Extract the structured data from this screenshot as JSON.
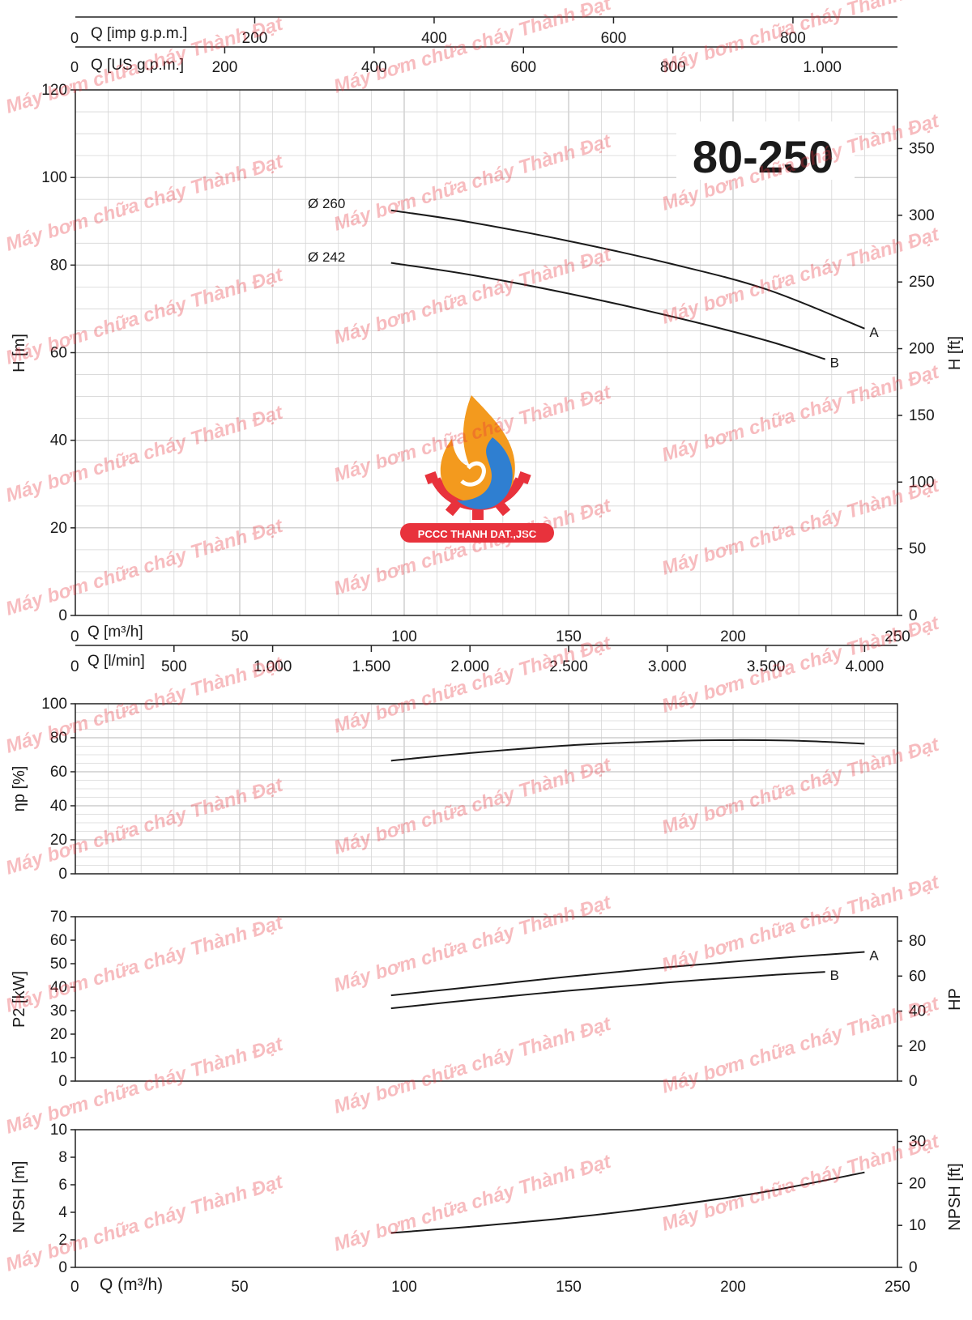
{
  "model": "80-250",
  "logo_text": "PCCC THANH DAT.,JSC",
  "watermark_text": "Máy bơm chữa cháy Thành Đạt",
  "colors": {
    "curve": "#1a1a1a",
    "grid": "#d6d6d6",
    "axis": "#222222",
    "watermark": "#e8323c",
    "logo_red": "#e8323c",
    "logo_orange": "#f39a1e",
    "logo_blue": "#2f7fd1"
  },
  "top_axes": {
    "imp_gpm": {
      "label": "Q [imp g.p.m.]",
      "ticks": [
        "0",
        "200",
        "400",
        "600",
        "800"
      ]
    },
    "us_gpm": {
      "label": "Q [US g.p.m.]",
      "ticks": [
        "0",
        "200",
        "400",
        "600",
        "800",
        "1.000"
      ]
    }
  },
  "bottom_axes": {
    "m3h": {
      "label": "Q [m³/h]",
      "ticks": [
        "0",
        "50",
        "100",
        "150",
        "200",
        "250"
      ]
    },
    "lmin": {
      "label": "Q [l/min]",
      "ticks": [
        "0",
        "500",
        "1.000",
        "1.500",
        "2.000",
        "2.500",
        "3.000",
        "3.500",
        "4.000"
      ]
    },
    "final": {
      "label": "Q (m³/h)",
      "ticks": [
        "0",
        "50",
        "100",
        "150",
        "200",
        "250"
      ]
    }
  },
  "chart_data": [
    {
      "type": "line",
      "title": "80-250",
      "xlabel": "Q [m³/h]",
      "ylabel": "H [m]",
      "y2label": "H [ft]",
      "xlim": [
        0,
        250
      ],
      "ylim": [
        0,
        120
      ],
      "y2lim": [
        0,
        394
      ],
      "yticks": [
        "0",
        "20",
        "40",
        "60",
        "80",
        "100",
        "120"
      ],
      "y2ticks": [
        "0",
        "50",
        "100",
        "150",
        "200",
        "250",
        "300",
        "350"
      ],
      "grid": true,
      "series": [
        {
          "name": "A",
          "diameter_label": "Ø 260",
          "x": [
            96,
            120,
            150,
            180,
            210,
            240
          ],
          "y": [
            92.5,
            89.8,
            85.5,
            80.5,
            74.5,
            65.5
          ]
        },
        {
          "name": "B",
          "diameter_label": "Ø 242",
          "x": [
            96,
            120,
            150,
            180,
            210,
            228
          ],
          "y": [
            80.5,
            77.8,
            73.5,
            68.5,
            62.8,
            58.5
          ]
        }
      ]
    },
    {
      "type": "line",
      "xlabel": "Q [m³/h]",
      "ylabel": "ηp [%]",
      "xlim": [
        0,
        250
      ],
      "ylim": [
        0,
        100
      ],
      "yticks": [
        "0",
        "20",
        "40",
        "60",
        "80",
        "100"
      ],
      "grid": true,
      "series": [
        {
          "x": [
            96,
            120,
            150,
            180,
            200,
            220,
            240
          ],
          "y": [
            66.5,
            71.0,
            75.5,
            78.0,
            78.6,
            78.2,
            76.5
          ]
        }
      ]
    },
    {
      "type": "line",
      "xlabel": "Q [m³/h]",
      "ylabel": "P2 [kW]",
      "y2label": "HP",
      "xlim": [
        0,
        250
      ],
      "ylim": [
        0,
        70
      ],
      "y2lim": [
        0,
        93.9
      ],
      "yticks": [
        "0",
        "10",
        "20",
        "30",
        "40",
        "50",
        "60",
        "70"
      ],
      "y2ticks": [
        "0",
        "20",
        "40",
        "60",
        "80"
      ],
      "grid": false,
      "series": [
        {
          "name": "A",
          "x": [
            96,
            120,
            150,
            180,
            210,
            240
          ],
          "y": [
            36.5,
            40.0,
            44.5,
            48.5,
            52.0,
            55.0
          ]
        },
        {
          "name": "B",
          "x": [
            96,
            120,
            150,
            180,
            210,
            228
          ],
          "y": [
            31.0,
            34.5,
            38.5,
            42.0,
            45.0,
            46.5
          ]
        }
      ]
    },
    {
      "type": "line",
      "xlabel": "Q (m³/h)",
      "ylabel": "NPSH [m]",
      "y2label": "NPSH [ft]",
      "xlim": [
        0,
        250
      ],
      "ylim": [
        0,
        10
      ],
      "y2lim": [
        0,
        32.8
      ],
      "yticks": [
        "0",
        "2",
        "4",
        "6",
        "8",
        "10"
      ],
      "y2ticks": [
        "0",
        "10",
        "20",
        "30"
      ],
      "grid": false,
      "series": [
        {
          "x": [
            96,
            120,
            150,
            180,
            210,
            240
          ],
          "y": [
            2.5,
            2.95,
            3.6,
            4.45,
            5.5,
            6.9
          ]
        }
      ]
    }
  ]
}
